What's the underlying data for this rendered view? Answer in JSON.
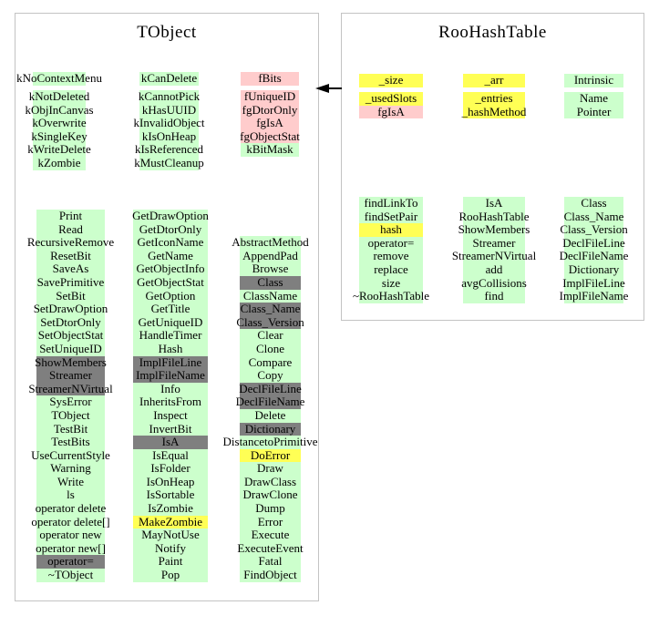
{
  "colors": {
    "public_green": "#ccffcc",
    "private_pink": "#ffcccc",
    "highlight_yellow": "#ffff55",
    "hidden_gray": "#7f7f7f",
    "border_gray": "#c3c3c3",
    "arrow_black": "#000000"
  },
  "classes": [
    {
      "title": "TObject",
      "columns": [
        {
          "items": [
            {
              "t": "kNoContextMenu",
              "c": "g",
              "gap": true
            },
            {
              "t": "kNotDeleted",
              "c": "g"
            },
            {
              "t": "kObjInCanvas",
              "c": "g"
            },
            {
              "t": "kOverwrite",
              "c": "g"
            },
            {
              "t": "kSingleKey",
              "c": "g"
            },
            {
              "t": "kWriteDelete",
              "c": "g"
            },
            {
              "t": "kZombie",
              "c": "g"
            }
          ]
        },
        {
          "items": [
            {
              "t": "kCanDelete",
              "c": "g",
              "gap": true
            },
            {
              "t": "kCannotPick",
              "c": "g"
            },
            {
              "t": "kHasUUID",
              "c": "g"
            },
            {
              "t": "kInvalidObject",
              "c": "g"
            },
            {
              "t": "kIsOnHeap",
              "c": "g"
            },
            {
              "t": "kIsReferenced",
              "c": "g"
            },
            {
              "t": "kMustCleanup",
              "c": "g"
            }
          ]
        },
        {
          "items": [
            {
              "t": "fBits",
              "c": "p",
              "gap": true
            },
            {
              "t": "fUniqueID",
              "c": "p"
            },
            {
              "t": "fgDtorOnly",
              "c": "p"
            },
            {
              "t": "fgIsA",
              "c": "p"
            },
            {
              "t": "fgObjectStat",
              "c": "p"
            },
            {
              "t": "kBitMask",
              "c": "g"
            }
          ]
        },
        {
          "items": [
            {
              "t": "Print",
              "c": "g"
            },
            {
              "t": "Read",
              "c": "g"
            },
            {
              "t": "RecursiveRemove",
              "c": "g"
            },
            {
              "t": "ResetBit",
              "c": "g"
            },
            {
              "t": "SaveAs",
              "c": "g"
            },
            {
              "t": "SavePrimitive",
              "c": "g"
            },
            {
              "t": "SetBit",
              "c": "g"
            },
            {
              "t": "SetDrawOption",
              "c": "g"
            },
            {
              "t": "SetDtorOnly",
              "c": "g"
            },
            {
              "t": "SetObjectStat",
              "c": "g"
            },
            {
              "t": "SetUniqueID",
              "c": "g"
            },
            {
              "t": "ShowMembers",
              "c": "d"
            },
            {
              "t": "Streamer",
              "c": "d"
            },
            {
              "t": "StreamerNVirtual",
              "c": "d"
            },
            {
              "t": "SysError",
              "c": "g"
            },
            {
              "t": "TObject",
              "c": "g"
            },
            {
              "t": "TestBit",
              "c": "g"
            },
            {
              "t": "TestBits",
              "c": "g"
            },
            {
              "t": "UseCurrentStyle",
              "c": "g"
            },
            {
              "t": "Warning",
              "c": "g"
            },
            {
              "t": "Write",
              "c": "g"
            },
            {
              "t": "ls",
              "c": "g"
            },
            {
              "t": "operator delete",
              "c": "g"
            },
            {
              "t": "operator delete[]",
              "c": "g"
            },
            {
              "t": "operator new",
              "c": "g"
            },
            {
              "t": "operator new[]",
              "c": "g"
            },
            {
              "t": "operator=",
              "c": "d"
            },
            {
              "t": "~TObject",
              "c": "g"
            }
          ]
        },
        {
          "items": [
            {
              "t": "GetDrawOption",
              "c": "g"
            },
            {
              "t": "GetDtorOnly",
              "c": "g"
            },
            {
              "t": "GetIconName",
              "c": "g"
            },
            {
              "t": "GetName",
              "c": "g"
            },
            {
              "t": "GetObjectInfo",
              "c": "g"
            },
            {
              "t": "GetObjectStat",
              "c": "g"
            },
            {
              "t": "GetOption",
              "c": "g"
            },
            {
              "t": "GetTitle",
              "c": "g"
            },
            {
              "t": "GetUniqueID",
              "c": "g"
            },
            {
              "t": "HandleTimer",
              "c": "g"
            },
            {
              "t": "Hash",
              "c": "g"
            },
            {
              "t": "ImplFileLine",
              "c": "d"
            },
            {
              "t": "ImplFileName",
              "c": "d"
            },
            {
              "t": "Info",
              "c": "g"
            },
            {
              "t": "InheritsFrom",
              "c": "g"
            },
            {
              "t": "Inspect",
              "c": "g"
            },
            {
              "t": "InvertBit",
              "c": "g"
            },
            {
              "t": "IsA",
              "c": "d"
            },
            {
              "t": "IsEqual",
              "c": "g"
            },
            {
              "t": "IsFolder",
              "c": "g"
            },
            {
              "t": "IsOnHeap",
              "c": "g"
            },
            {
              "t": "IsSortable",
              "c": "g"
            },
            {
              "t": "IsZombie",
              "c": "g"
            },
            {
              "t": "MakeZombie",
              "c": "y"
            },
            {
              "t": "MayNotUse",
              "c": "g"
            },
            {
              "t": "Notify",
              "c": "g"
            },
            {
              "t": "Paint",
              "c": "g"
            },
            {
              "t": "Pop",
              "c": "g"
            }
          ]
        },
        {
          "items": [
            {
              "t": "AbstractMethod",
              "c": "g"
            },
            {
              "t": "AppendPad",
              "c": "g"
            },
            {
              "t": "Browse",
              "c": "g"
            },
            {
              "t": "Class",
              "c": "d"
            },
            {
              "t": "ClassName",
              "c": "g"
            },
            {
              "t": "Class_Name",
              "c": "d"
            },
            {
              "t": "Class_Version",
              "c": "d"
            },
            {
              "t": "Clear",
              "c": "g"
            },
            {
              "t": "Clone",
              "c": "g"
            },
            {
              "t": "Compare",
              "c": "g"
            },
            {
              "t": "Copy",
              "c": "g"
            },
            {
              "t": "DeclFileLine",
              "c": "d"
            },
            {
              "t": "DeclFileName",
              "c": "d"
            },
            {
              "t": "Delete",
              "c": "g"
            },
            {
              "t": "Dictionary",
              "c": "d"
            },
            {
              "t": "DistancetoPrimitive",
              "c": "g"
            },
            {
              "t": "DoError",
              "c": "y"
            },
            {
              "t": "Draw",
              "c": "g"
            },
            {
              "t": "DrawClass",
              "c": "g"
            },
            {
              "t": "DrawClone",
              "c": "g"
            },
            {
              "t": "Dump",
              "c": "g"
            },
            {
              "t": "Error",
              "c": "g"
            },
            {
              "t": "Execute",
              "c": "g"
            },
            {
              "t": "ExecuteEvent",
              "c": "g"
            },
            {
              "t": "Fatal",
              "c": "g"
            },
            {
              "t": "FindObject",
              "c": "g"
            }
          ]
        }
      ]
    },
    {
      "title": "RooHashTable",
      "columns": [
        {
          "items": [
            {
              "t": "_size",
              "c": "y",
              "gap": true
            },
            {
              "t": "_usedSlots",
              "c": "y"
            },
            {
              "t": "fgIsA",
              "c": "p"
            }
          ]
        },
        {
          "items": [
            {
              "t": "_arr",
              "c": "y",
              "gap": true
            },
            {
              "t": "_entries",
              "c": "y"
            },
            {
              "t": "_hashMethod",
              "c": "y"
            }
          ]
        },
        {
          "items": [
            {
              "t": "Intrinsic",
              "c": "g",
              "gap": true
            },
            {
              "t": "Name",
              "c": "g"
            },
            {
              "t": "Pointer",
              "c": "g"
            }
          ]
        },
        {
          "items": [
            {
              "t": "findLinkTo",
              "c": "g"
            },
            {
              "t": "findSetPair",
              "c": "g"
            },
            {
              "t": "hash",
              "c": "y"
            },
            {
              "t": "operator=",
              "c": "g"
            },
            {
              "t": "remove",
              "c": "g"
            },
            {
              "t": "replace",
              "c": "g"
            },
            {
              "t": "size",
              "c": "g"
            },
            {
              "t": "~RooHashTable",
              "c": "g"
            }
          ]
        },
        {
          "items": [
            {
              "t": "IsA",
              "c": "g"
            },
            {
              "t": "RooHashTable",
              "c": "g"
            },
            {
              "t": "ShowMembers",
              "c": "g"
            },
            {
              "t": "Streamer",
              "c": "g"
            },
            {
              "t": "StreamerNVirtual",
              "c": "g"
            },
            {
              "t": "add",
              "c": "g"
            },
            {
              "t": "avgCollisions",
              "c": "g"
            },
            {
              "t": "find",
              "c": "g"
            }
          ]
        },
        {
          "items": [
            {
              "t": "Class",
              "c": "g"
            },
            {
              "t": "Class_Name",
              "c": "g"
            },
            {
              "t": "Class_Version",
              "c": "g"
            },
            {
              "t": "DeclFileLine",
              "c": "g"
            },
            {
              "t": "DeclFileName",
              "c": "g"
            },
            {
              "t": "Dictionary",
              "c": "g"
            },
            {
              "t": "ImplFileLine",
              "c": "g"
            },
            {
              "t": "ImplFileName",
              "c": "g"
            }
          ]
        }
      ]
    }
  ]
}
